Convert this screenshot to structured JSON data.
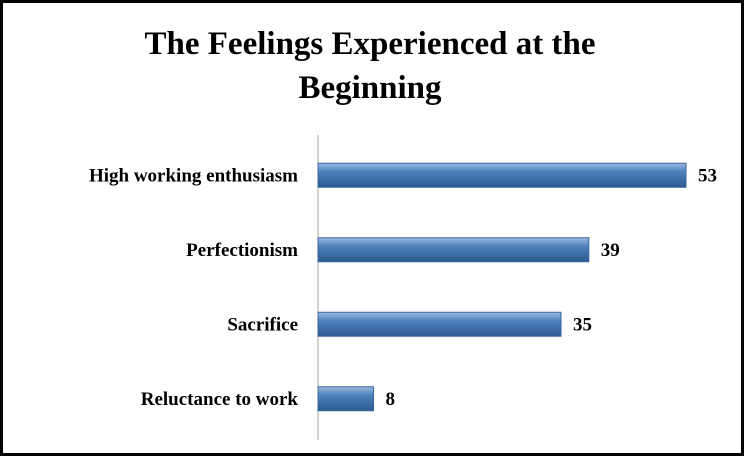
{
  "chart_data": {
    "type": "bar",
    "orientation": "horizontal",
    "title": "The Feelings Experienced at the Beginning",
    "categories": [
      "High working enthusiasm",
      "Perfectionism",
      "Sacrifice",
      "Reluctance to work"
    ],
    "values": [
      53,
      39,
      35,
      8
    ],
    "color": "#4f81bd"
  }
}
